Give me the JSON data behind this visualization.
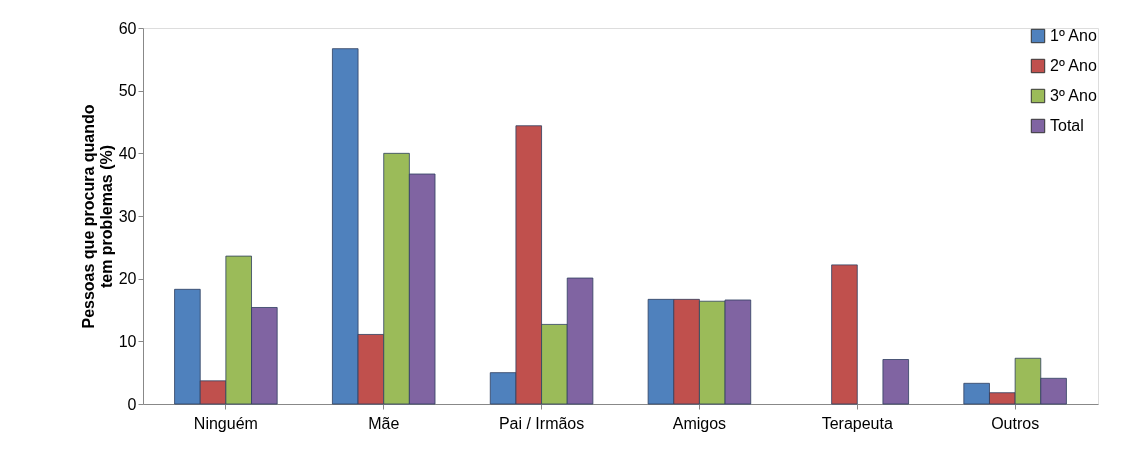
{
  "chart_data": {
    "type": "bar",
    "ylabel": "Pessoas que procura quando tem problemas (%)",
    "categories": [
      "Ninguém",
      "Mãe",
      "Pai / Irmãos",
      "Amigos",
      "Terapeuta",
      "Outros"
    ],
    "series": [
      {
        "name": "1º Ano",
        "color": "#4f81bd",
        "values": [
          18.3,
          56.7,
          5.0,
          16.7,
          0,
          3.3
        ]
      },
      {
        "name": "2º Ano",
        "color": "#c0504d",
        "values": [
          3.7,
          11.1,
          44.4,
          16.7,
          22.2,
          1.8
        ]
      },
      {
        "name": "3º Ano",
        "color": "#9bbb59",
        "values": [
          23.6,
          40.0,
          12.7,
          16.4,
          0,
          7.3
        ]
      },
      {
        "name": "Total",
        "color": "#8064a2",
        "values": [
          15.4,
          36.7,
          20.1,
          16.6,
          7.1,
          4.1
        ]
      }
    ],
    "ylim": [
      0,
      60
    ],
    "yticks": [
      0,
      10,
      20,
      30,
      40,
      50,
      60
    ],
    "grid": false,
    "legend": "top right"
  }
}
